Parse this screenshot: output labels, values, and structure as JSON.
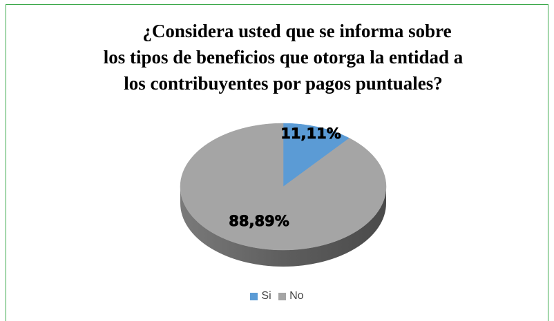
{
  "chart_data": {
    "type": "pie",
    "title_lines": [
      "¿Considera usted que se informa sobre",
      "los tipos de beneficios que otorga la entidad a",
      "los contribuyentes por pagos puntuales?"
    ],
    "categories": [
      "Si",
      "No"
    ],
    "values": [
      11.11,
      88.89
    ],
    "data_labels": [
      "11,11%",
      "88,89%"
    ],
    "colors": [
      "#5b9bd5",
      "#a5a5a5"
    ],
    "legend_position": "bottom"
  }
}
